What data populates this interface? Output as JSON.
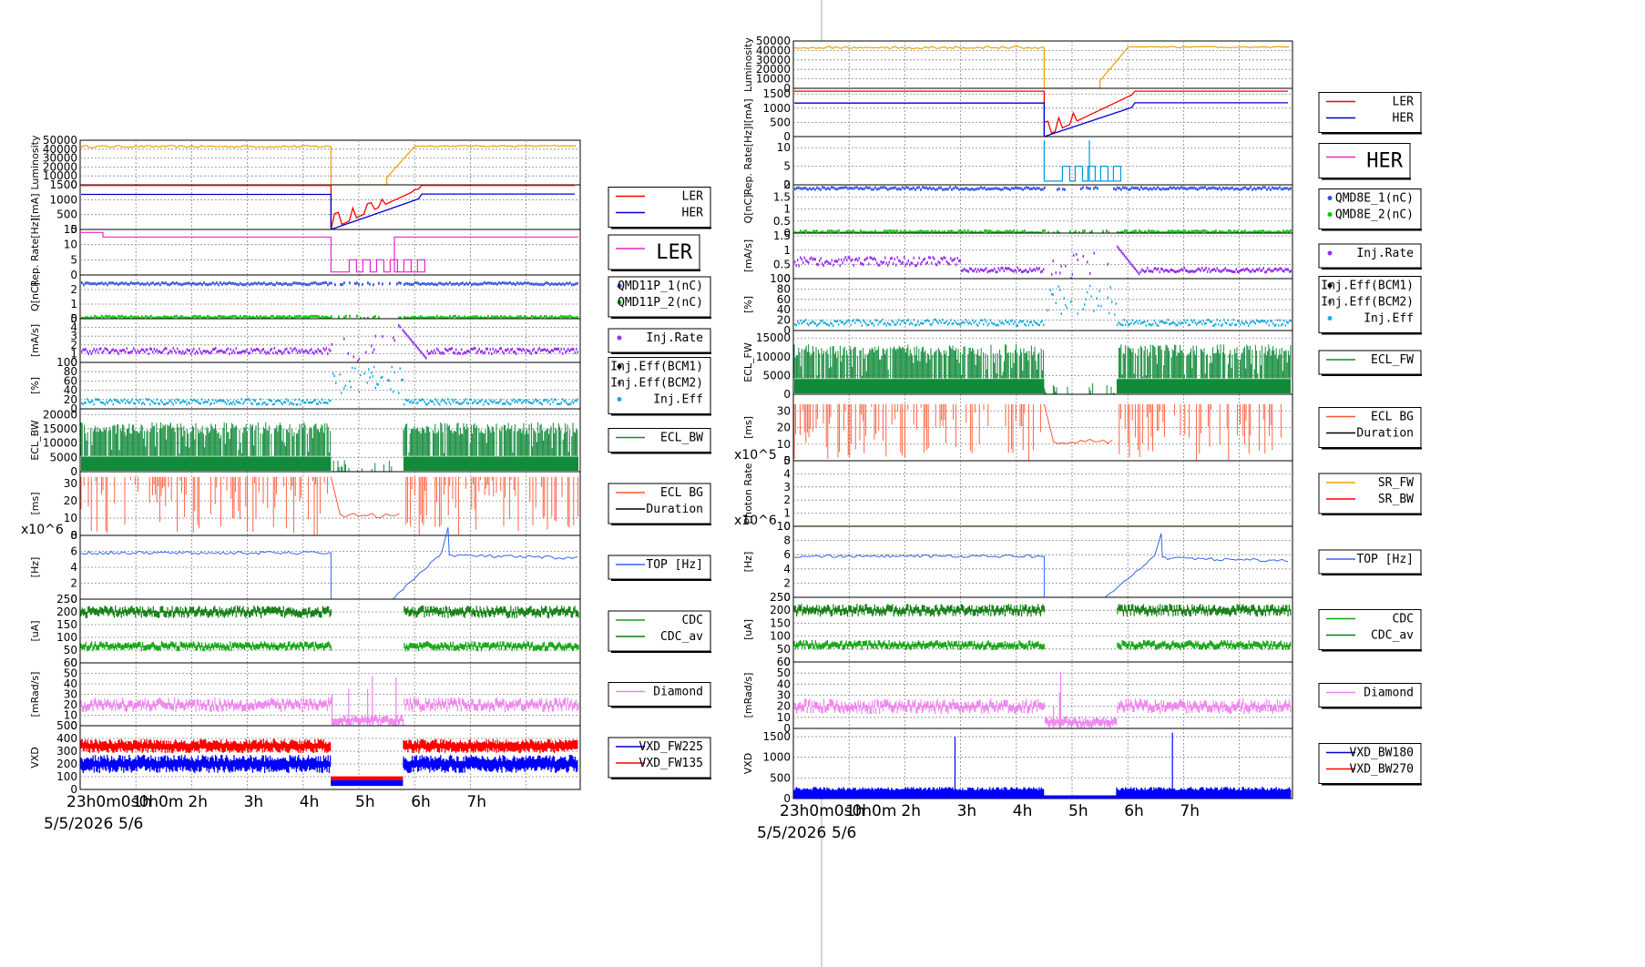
{
  "colors": {
    "luminosity": "#e8a200",
    "ler": "#ff0000",
    "her": "#0000cc",
    "rep_ler": "#ee22cc",
    "rep_her": "#0099dd",
    "q1": "#3355dd",
    "q2": "#00cc00",
    "injrate": "#9933ee",
    "injeff": "#1aaee0",
    "ecl": "#128a3a",
    "eclbg": "#ff5533",
    "top": "#3366ee",
    "cdc": "#0aa30a",
    "cdc_av": "#0b7a0b",
    "diamond": "#ee82ee",
    "vxd_red": "#ff0000",
    "vxd_blue": "#0000ff"
  },
  "chart_data": [
    {
      "name": "left",
      "xticks": [
        "23h0m0s0h0m",
        "1h",
        "2h",
        "3h",
        "4h",
        "5h",
        "6h",
        "7h"
      ],
      "date_left": "5/5/2026",
      "date_right": "5/6",
      "panels": [
        {
          "id": "lumi",
          "type": "line",
          "ylabel": "Luminosity",
          "ylim": [
            0,
            50000
          ],
          "yticks": [
            "50000",
            "40000",
            "30000",
            "20000",
            "10000",
            "0"
          ],
          "legend": []
        },
        {
          "id": "cur",
          "type": "line",
          "ylabel": "I[mA]",
          "ylim": [
            0,
            1500
          ],
          "yticks": [
            "1500",
            "1000",
            "500",
            "0"
          ],
          "legend": [
            "LER",
            "HER"
          ]
        },
        {
          "id": "rep",
          "type": "line",
          "ylabel": "Rep. Rate[Hz]",
          "ylim": [
            0,
            15
          ],
          "yticks": [
            "15",
            "10",
            "5",
            "0"
          ],
          "legend": [
            "LER"
          ],
          "legend_big": true
        },
        {
          "id": "q",
          "type": "scatter",
          "ylabel": "Q[nC]",
          "ylim": [
            0,
            3
          ],
          "yticks": [
            "2",
            "1",
            "0"
          ],
          "legend": [
            "QMD11P_1(nC)",
            "QMD11P_2(nC)"
          ]
        },
        {
          "id": "inj",
          "type": "scatter",
          "ylabel": "[mA/s]",
          "ylim": [
            0,
            5
          ],
          "yticks": [
            "5",
            "4",
            "3",
            "2",
            "1",
            "0"
          ],
          "legend": [
            "Inj.Rate"
          ]
        },
        {
          "id": "eff",
          "type": "scatter",
          "ylabel": "[%]",
          "ylim": [
            0,
            100
          ],
          "yticks": [
            "100",
            "80",
            "60",
            "40",
            "20",
            "0"
          ],
          "legend": [
            "Inj.Eff(BCM1)",
            "Inj.Eff(BCM2)",
            "Inj.Eff"
          ]
        },
        {
          "id": "ecl",
          "type": "area",
          "ylabel": "ECL_BW",
          "ylim": [
            0,
            22000
          ],
          "yticks": [
            "20000",
            "15000",
            "10000",
            "5000",
            "0"
          ],
          "legend": [
            "ECL_BW"
          ]
        },
        {
          "id": "eclbg",
          "type": "line",
          "ylabel": "[ms]",
          "ylim": [
            0,
            37
          ],
          "yticks": [
            "30",
            "20",
            "10",
            "0"
          ],
          "legend": [
            "ECL BG",
            "Duration"
          ]
        },
        {
          "id": "top",
          "type": "line",
          "ylabel": "[Hz]",
          "ylim": [
            0,
            8
          ],
          "yticks": [
            "8",
            "6",
            "4",
            "2",
            "0"
          ],
          "legend": [
            "TOP [Hz]"
          ],
          "exp": "x10^6"
        },
        {
          "id": "cdc",
          "type": "area",
          "ylabel": "[uA]",
          "ylim": [
            0,
            250
          ],
          "yticks": [
            "250",
            "200",
            "150",
            "100",
            "50",
            "0"
          ],
          "legend": [
            "CDC",
            "CDC_av"
          ]
        },
        {
          "id": "dia",
          "type": "area",
          "ylabel": "[mRad/s]",
          "ylim": [
            0,
            60
          ],
          "yticks": [
            "60",
            "50",
            "40",
            "30",
            "20",
            "10",
            "0"
          ],
          "legend": [
            "Diamond"
          ]
        },
        {
          "id": "vxd",
          "type": "area",
          "ylabel": "VXD",
          "ylim": [
            0,
            500
          ],
          "yticks": [
            "500",
            "400",
            "300",
            "200",
            "100",
            "0"
          ],
          "legend": [
            "VXD_FW225",
            "VXD_FW135"
          ]
        }
      ],
      "series_summary": {
        "luminosity_before_gap": 43000,
        "luminosity_after_recovery": 43500,
        "ler_current_before": 1480,
        "her_current_before": 1180,
        "ler_current_after": 1540,
        "her_current_after": 1200,
        "beam_abort_hour": 4.5,
        "recovery_end_hour": 5.8
      }
    },
    {
      "name": "right",
      "xticks": [
        "23h0m0s0h0m",
        "1h",
        "2h",
        "3h",
        "4h",
        "5h",
        "6h",
        "7h"
      ],
      "date_left": "5/5/2026",
      "date_right": "5/6",
      "panels": [
        {
          "id": "lumi",
          "type": "line",
          "ylabel": "Luminosity",
          "ylim": [
            0,
            50000
          ],
          "yticks": [
            "50000",
            "40000",
            "30000",
            "20000",
            "10000",
            "0"
          ],
          "legend": []
        },
        {
          "id": "cur",
          "type": "line",
          "ylabel": "I[mA]",
          "ylim": [
            0,
            1700
          ],
          "yticks": [
            "1500",
            "1000",
            "500",
            "0"
          ],
          "legend": [
            "LER",
            "HER"
          ]
        },
        {
          "id": "rep",
          "type": "line",
          "ylabel": "Rep. Rate[Hz]",
          "ylim": [
            0,
            13
          ],
          "yticks": [
            "10",
            "5",
            "0"
          ],
          "legend": [
            "HER"
          ],
          "legend_big": true
        },
        {
          "id": "q",
          "type": "scatter",
          "ylabel": "Q[nC]",
          "ylim": [
            0,
            2
          ],
          "yticks": [
            "2",
            "1.5",
            "1",
            "0.5",
            "0"
          ],
          "legend": [
            "QMD8E_1(nC)",
            "QMD8E_2(nC)"
          ]
        },
        {
          "id": "inj",
          "type": "scatter",
          "ylabel": "[mA/s]",
          "ylim": [
            0,
            1.6
          ],
          "yticks": [
            "1.5",
            "1",
            "0.5",
            "0"
          ],
          "legend": [
            "Inj.Rate"
          ]
        },
        {
          "id": "eff",
          "type": "scatter",
          "ylabel": "[%]",
          "ylim": [
            0,
            100
          ],
          "yticks": [
            "100",
            "80",
            "60",
            "40",
            "20",
            "0"
          ],
          "legend": [
            "Inj.Eff(BCM1)",
            "Inj.Eff(BCM2)",
            "Inj.Eff"
          ]
        },
        {
          "id": "ecl",
          "type": "area",
          "ylabel": "ECL_FW",
          "ylim": [
            0,
            17000
          ],
          "yticks": [
            "15000",
            "10000",
            "5000",
            "0"
          ],
          "legend": [
            "ECL_FW"
          ]
        },
        {
          "id": "eclbg",
          "type": "line",
          "ylabel": "[ms]",
          "ylim": [
            0,
            40
          ],
          "yticks": [
            "30",
            "20",
            "10",
            "0"
          ],
          "legend": [
            "ECL BG",
            "Duration"
          ]
        },
        {
          "id": "photon",
          "type": "line",
          "ylabel": "Photon Rate",
          "ylim": [
            0,
            5
          ],
          "yticks": [
            "5",
            "4",
            "3",
            "2",
            "1",
            "0"
          ],
          "legend": [
            "SR_FW",
            "SR_BW"
          ],
          "exp": "x10^5"
        },
        {
          "id": "top",
          "type": "line",
          "ylabel": "[Hz]",
          "ylim": [
            0,
            10
          ],
          "yticks": [
            "10",
            "8",
            "6",
            "4",
            "2",
            "0"
          ],
          "legend": [
            "TOP [Hz]"
          ],
          "exp": "x10^6"
        },
        {
          "id": "cdc",
          "type": "area",
          "ylabel": "[uA]",
          "ylim": [
            0,
            250
          ],
          "yticks": [
            "250",
            "200",
            "150",
            "100",
            "50",
            "0"
          ],
          "legend": [
            "CDC",
            "CDC_av"
          ]
        },
        {
          "id": "dia",
          "type": "area",
          "ylabel": "[mRad/s]",
          "ylim": [
            0,
            60
          ],
          "yticks": [
            "60",
            "50",
            "40",
            "30",
            "20",
            "10",
            "0"
          ],
          "legend": [
            "Diamond"
          ]
        },
        {
          "id": "vxd",
          "type": "area",
          "ylabel": "VXD",
          "ylim": [
            0,
            1700
          ],
          "yticks": [
            "1500",
            "1000",
            "500",
            "0"
          ],
          "legend": [
            "VXD_BW180",
            "VXD_BW270"
          ]
        }
      ]
    }
  ]
}
